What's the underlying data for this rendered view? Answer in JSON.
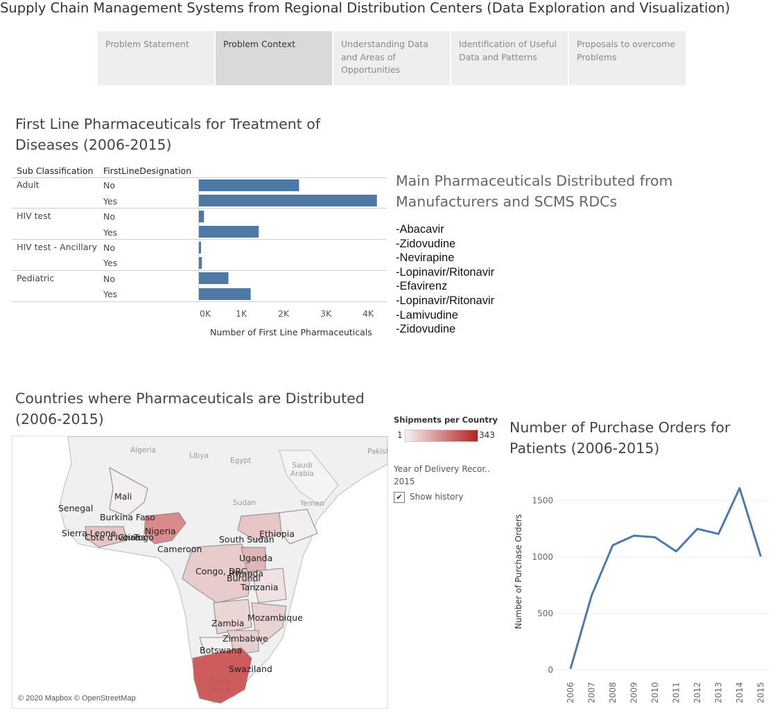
{
  "title": "Supply Chain Management Systems from Regional Distribution Centers (Data Exploration and Visualization)",
  "tabs": [
    {
      "label": "Problem Statement",
      "active": false
    },
    {
      "label": "Problem Context",
      "active": true
    },
    {
      "label": "Understanding Data and Areas of Opportunities",
      "active": false
    },
    {
      "label": "Identification of Useful Data and Patterns",
      "active": false
    },
    {
      "label": "Proposals to overcome Problems",
      "active": false
    }
  ],
  "bar_section": {
    "title": "First Line Pharmaceuticals for Treatment of Diseases (2006-2015)",
    "col1_header": "Sub Classification",
    "col2_header": "FirstLineDesignation",
    "groups": [
      "Adult",
      "HIV test",
      "HIV test - Ancillary",
      "Pediatric"
    ],
    "designations": [
      "No",
      "Yes",
      "No",
      "Yes",
      "No",
      "Yes",
      "No",
      "Yes"
    ],
    "xlabel": "Number of First Line Pharmaceuticals",
    "ticks": [
      "0K",
      "1K",
      "2K",
      "3K",
      "4K"
    ],
    "bar_color": "#4e79a7"
  },
  "chart_data": [
    {
      "type": "bar",
      "orientation": "horizontal",
      "title": "First Line Pharmaceuticals for Treatment of Diseases (2006-2015)",
      "categories": [
        "Adult / No",
        "Adult / Yes",
        "HIV test / No",
        "HIV test / Yes",
        "HIV test - Ancillary / No",
        "HIV test - Ancillary / Yes",
        "Pediatric / No",
        "Pediatric / Yes"
      ],
      "values": [
        2380,
        4230,
        120,
        1420,
        50,
        70,
        700,
        1230
      ],
      "xlabel": "Number of First Line Pharmaceuticals",
      "xlim": [
        0,
        4300
      ]
    },
    {
      "type": "line",
      "title": "Number of Purchase Orders for Patients (2006-2015)",
      "x": [
        "2006",
        "2007",
        "2008",
        "2009",
        "2010",
        "2011",
        "2012",
        "2013",
        "2014",
        "2015"
      ],
      "series": [
        {
          "values": [
            10,
            660,
            1105,
            1190,
            1175,
            1050,
            1250,
            1205,
            1610,
            1005
          ]
        }
      ],
      "ylabel": "Number of Purchase Orders",
      "yticks": [
        "0",
        "500",
        "1000",
        "1500"
      ],
      "ylim": [
        0,
        1700
      ],
      "line_color": "#4e79a7"
    }
  ],
  "drugs_section": {
    "title": "Main Pharmaceuticals Distributed from Manufacturers and SCMS RDCs",
    "items": [
      "-Abacavir",
      "-Zidovudine",
      "-Nevirapine",
      "-Lopinavir/Ritonavir",
      "-Efavirenz",
      "-Lopinavir/Ritonavir",
      "-Lamivudine",
      "-Zidovudine"
    ]
  },
  "map_section": {
    "title": "Countries where Pharmaceuticals are Distributed (2006-2015)",
    "credit": "© 2020 Mapbox © OpenStreetMap",
    "base_labels": [
      "Algeria",
      "Libya",
      "Egypt",
      "Saudi Arabia",
      "Sudan",
      "Yemen",
      "Pakist"
    ],
    "country_labels": [
      "Mali",
      "Senegal",
      "Burkina Faso",
      "Sierra Leone",
      "Cote d'Ivoire",
      "Ghana",
      "Togo",
      "Nigeria",
      "Cameroon",
      "South Sudan",
      "Ethiopia",
      "Uganda",
      "Congo, DRC",
      "Rwanda",
      "Burundi",
      "Tanzania",
      "Zambia",
      "Mozambique",
      "Zimbabwe",
      "Botswana",
      "Swaziland",
      "South Africa"
    ],
    "legend_title": "Shipments per Country",
    "legend_min": "1",
    "legend_max": "343",
    "year_label": "Year of Delivery Recor..",
    "year_value": "2015",
    "show_history_label": "Show history",
    "show_history_checked": true
  },
  "line_section": {
    "title": "Number of Purchase Orders for Patients (2006-2015)"
  }
}
